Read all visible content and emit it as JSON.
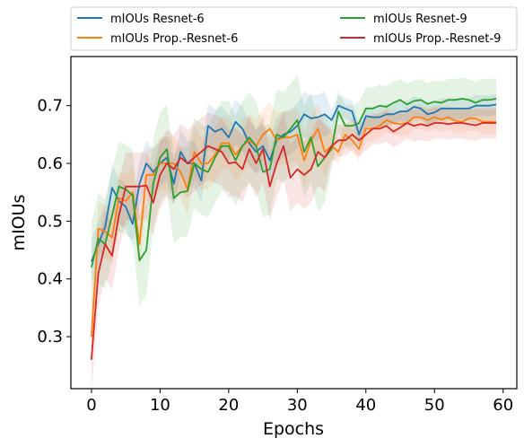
{
  "chart_data": {
    "type": "line",
    "xlabel": "Epochs",
    "ylabel": "mIOUs",
    "xlim": [
      -3,
      62
    ],
    "ylim": [
      0.21,
      0.785
    ],
    "xticks": [
      0,
      10,
      20,
      30,
      40,
      50,
      60
    ],
    "yticks": [
      0.3,
      0.4,
      0.5,
      0.6,
      0.7
    ],
    "legend": "top, above plot, two columns",
    "grid": false,
    "x": [
      0,
      1,
      2,
      3,
      4,
      5,
      6,
      7,
      8,
      9,
      10,
      11,
      12,
      13,
      14,
      15,
      16,
      17,
      18,
      19,
      20,
      21,
      22,
      23,
      24,
      25,
      26,
      27,
      28,
      29,
      30,
      31,
      32,
      33,
      34,
      35,
      36,
      37,
      38,
      39,
      40,
      41,
      42,
      43,
      44,
      45,
      46,
      47,
      48,
      49,
      50,
      51,
      52,
      53,
      54,
      55,
      56,
      57,
      58,
      59
    ],
    "series": [
      {
        "name": "mIOUs Resnet-6",
        "color": "#1f77b4",
        "values": [
          0.43,
          0.46,
          0.49,
          0.558,
          0.535,
          0.525,
          0.495,
          0.565,
          0.6,
          0.585,
          0.6,
          0.61,
          0.565,
          0.62,
          0.6,
          0.6,
          0.57,
          0.665,
          0.655,
          0.66,
          0.645,
          0.672,
          0.66,
          0.635,
          0.62,
          0.63,
          0.605,
          0.64,
          0.65,
          0.655,
          0.665,
          0.685,
          0.678,
          0.68,
          0.685,
          0.675,
          0.7,
          0.695,
          0.69,
          0.65,
          0.682,
          0.68,
          0.68,
          0.685,
          0.685,
          0.69,
          0.69,
          0.698,
          0.695,
          0.685,
          0.688,
          0.695,
          0.695,
          0.695,
          0.695,
          0.695,
          0.7,
          0.7,
          0.7,
          0.702
        ],
        "band": 0.03
      },
      {
        "name": "mIOUs Prop.-Resnet-6",
        "color": "#ff7f0e",
        "values": [
          0.3,
          0.487,
          0.482,
          0.472,
          0.54,
          0.535,
          0.55,
          0.46,
          0.58,
          0.58,
          0.6,
          0.6,
          0.6,
          0.585,
          0.555,
          0.62,
          0.6,
          0.6,
          0.615,
          0.635,
          0.635,
          0.615,
          0.63,
          0.64,
          0.63,
          0.65,
          0.66,
          0.64,
          0.645,
          0.645,
          0.65,
          0.605,
          0.64,
          0.66,
          0.62,
          0.63,
          0.62,
          0.65,
          0.64,
          0.625,
          0.66,
          0.66,
          0.665,
          0.675,
          0.67,
          0.668,
          0.67,
          0.68,
          0.68,
          0.675,
          0.68,
          0.676,
          0.68,
          0.674,
          0.672,
          0.678,
          0.678,
          0.672,
          0.672,
          0.672
        ],
        "band": 0.035
      },
      {
        "name": "mIOUs Resnet-9",
        "color": "#2ca02c",
        "values": [
          0.42,
          0.47,
          0.46,
          0.51,
          0.56,
          0.555,
          0.545,
          0.432,
          0.45,
          0.565,
          0.61,
          0.625,
          0.54,
          0.55,
          0.552,
          0.6,
          0.59,
          0.585,
          0.61,
          0.63,
          0.63,
          0.605,
          0.63,
          0.645,
          0.63,
          0.585,
          0.59,
          0.65,
          0.645,
          0.66,
          0.675,
          0.62,
          0.645,
          0.595,
          0.61,
          0.625,
          0.69,
          0.665,
          0.665,
          0.67,
          0.695,
          0.695,
          0.7,
          0.698,
          0.705,
          0.71,
          0.702,
          0.708,
          0.71,
          0.703,
          0.707,
          0.705,
          0.71,
          0.71,
          0.712,
          0.71,
          0.705,
          0.71,
          0.71,
          0.712
        ],
        "band": 0.06
      },
      {
        "name": "mIOUs Prop.-Resnet-9",
        "color": "#d62728",
        "values": [
          0.26,
          0.41,
          0.46,
          0.44,
          0.51,
          0.56,
          0.56,
          0.56,
          0.562,
          0.532,
          0.58,
          0.6,
          0.59,
          0.61,
          0.6,
          0.61,
          0.62,
          0.63,
          0.625,
          0.62,
          0.6,
          0.602,
          0.59,
          0.625,
          0.6,
          0.625,
          0.56,
          0.6,
          0.63,
          0.575,
          0.59,
          0.58,
          0.59,
          0.62,
          0.61,
          0.63,
          0.64,
          0.64,
          0.65,
          0.64,
          0.65,
          0.66,
          0.66,
          0.665,
          0.655,
          0.662,
          0.67,
          0.665,
          0.668,
          0.665,
          0.67,
          0.67,
          0.668,
          0.67,
          0.67,
          0.668,
          0.666,
          0.67,
          0.67,
          0.67
        ],
        "band": 0.045
      }
    ]
  }
}
